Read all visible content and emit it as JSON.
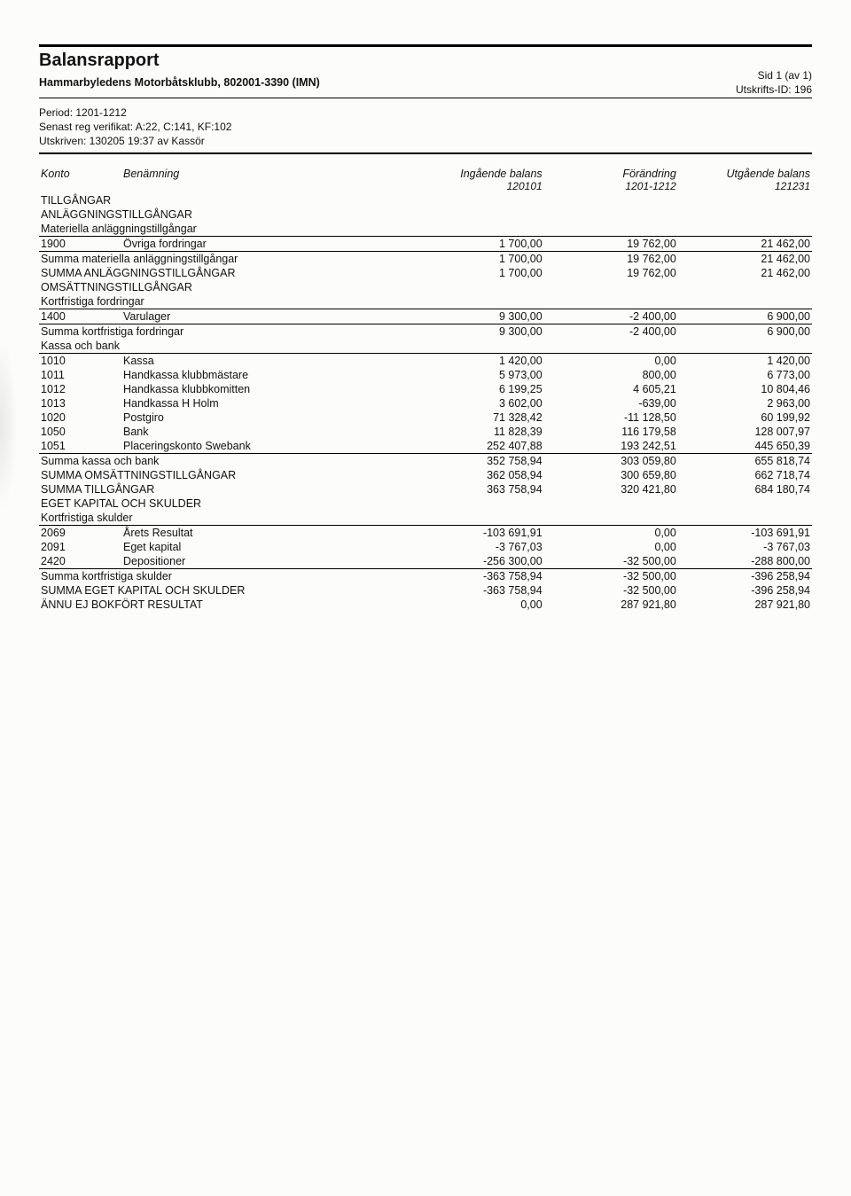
{
  "header": {
    "title": "Balansrapport",
    "subtitle": "Hammarbyledens Motorbåtsklubb, 802001-3390 (IMN)",
    "page_label": "Sid 1 (av 1)",
    "print_id": "Utskrifts-ID: 196",
    "period": "Period: 1201-1212",
    "verifikat": "Senast reg verifikat: A:22, C:141, KF:102",
    "utskriven": "Utskriven: 130205 19:37 av Kassör"
  },
  "columns": {
    "konto": "Konto",
    "benamning": "Benämning",
    "ing": "Ingående balans",
    "ing_sub": "120101",
    "for": "Förändring",
    "for_sub": "1201-1212",
    "utg": "Utgående balans",
    "utg_sub": "121231"
  },
  "sections": {
    "tillgangar": "TILLGÅNGAR",
    "anlaggning": "ANLÄGGNINGSTILLGÅNGAR",
    "mat_anlagg": "Materiella anläggningstillgångar",
    "omsattning": "OMSÄTTNINGSTILLGÅNGAR",
    "kort_fordr": "Kortfristiga fordringar",
    "kassa_bank": "Kassa och bank",
    "eget_skuld": "EGET KAPITAL OCH SKULDER",
    "kort_skuld": "Kortfristiga skulder"
  },
  "rows": {
    "r1900": {
      "konto": "1900",
      "ben": "Övriga fordringar",
      "ing": "1 700,00",
      "for": "19 762,00",
      "utg": "21 462,00"
    },
    "sum_mat": {
      "ben": "Summa materiella anläggningstillgångar",
      "ing": "1 700,00",
      "for": "19 762,00",
      "utg": "21 462,00"
    },
    "sum_anl": {
      "ben": "SUMMA ANLÄGGNINGSTILLGÅNGAR",
      "ing": "1 700,00",
      "for": "19 762,00",
      "utg": "21 462,00"
    },
    "r1400": {
      "konto": "1400",
      "ben": "Varulager",
      "ing": "9 300,00",
      "for": "-2 400,00",
      "utg": "6 900,00"
    },
    "sum_kf": {
      "ben": "Summa kortfristiga fordringar",
      "ing": "9 300,00",
      "for": "-2 400,00",
      "utg": "6 900,00"
    },
    "r1010": {
      "konto": "1010",
      "ben": "Kassa",
      "ing": "1 420,00",
      "for": "0,00",
      "utg": "1 420,00"
    },
    "r1011": {
      "konto": "1011",
      "ben": "Handkassa klubbmästare",
      "ing": "5 973,00",
      "for": "800,00",
      "utg": "6 773,00"
    },
    "r1012": {
      "konto": "1012",
      "ben": "Handkassa klubbkomitten",
      "ing": "6 199,25",
      "for": "4 605,21",
      "utg": "10 804,46"
    },
    "r1013": {
      "konto": "1013",
      "ben": "Handkassa H Holm",
      "ing": "3 602,00",
      "for": "-639,00",
      "utg": "2 963,00"
    },
    "r1020": {
      "konto": "1020",
      "ben": "Postgiro",
      "ing": "71 328,42",
      "for": "-11 128,50",
      "utg": "60 199,92"
    },
    "r1050": {
      "konto": "1050",
      "ben": "Bank",
      "ing": "11 828,39",
      "for": "116 179,58",
      "utg": "128 007,97"
    },
    "r1051": {
      "konto": "1051",
      "ben": "Placeringskonto Swebank",
      "ing": "252 407,88",
      "for": "193 242,51",
      "utg": "445 650,39"
    },
    "sum_kb": {
      "ben": "Summa kassa och bank",
      "ing": "352 758,94",
      "for": "303 059,80",
      "utg": "655 818,74"
    },
    "sum_oms": {
      "ben": "SUMMA OMSÄTTNINGSTILLGÅNGAR",
      "ing": "362 058,94",
      "for": "300 659,80",
      "utg": "662 718,74"
    },
    "sum_till": {
      "ben": "SUMMA TILLGÅNGAR",
      "ing": "363 758,94",
      "for": "320 421,80",
      "utg": "684 180,74"
    },
    "r2069": {
      "konto": "2069",
      "ben": "Årets Resultat",
      "ing": "-103 691,91",
      "for": "0,00",
      "utg": "-103 691,91"
    },
    "r2091": {
      "konto": "2091",
      "ben": "Eget kapital",
      "ing": "-3 767,03",
      "for": "0,00",
      "utg": "-3 767,03"
    },
    "r2420": {
      "konto": "2420",
      "ben": "Depositioner",
      "ing": "-256 300,00",
      "for": "-32 500,00",
      "utg": "-288 800,00"
    },
    "sum_ks": {
      "ben": "Summa kortfristiga skulder",
      "ing": "-363 758,94",
      "for": "-32 500,00",
      "utg": "-396 258,94"
    },
    "sum_eks": {
      "ben": "SUMMA EGET KAPITAL OCH SKULDER",
      "ing": "-363 758,94",
      "for": "-32 500,00",
      "utg": "-396 258,94"
    },
    "ej_bokf": {
      "ben": "ÄNNU EJ BOKFÖRT RESULTAT",
      "ing": "0,00",
      "for": "287 921,80",
      "utg": "287 921,80"
    }
  },
  "style": {
    "colors": {
      "background": "#fcfcfb",
      "text": "#111111",
      "rule": "#000000"
    },
    "fonts": {
      "body_pt": 13,
      "title_pt": 20
    }
  }
}
